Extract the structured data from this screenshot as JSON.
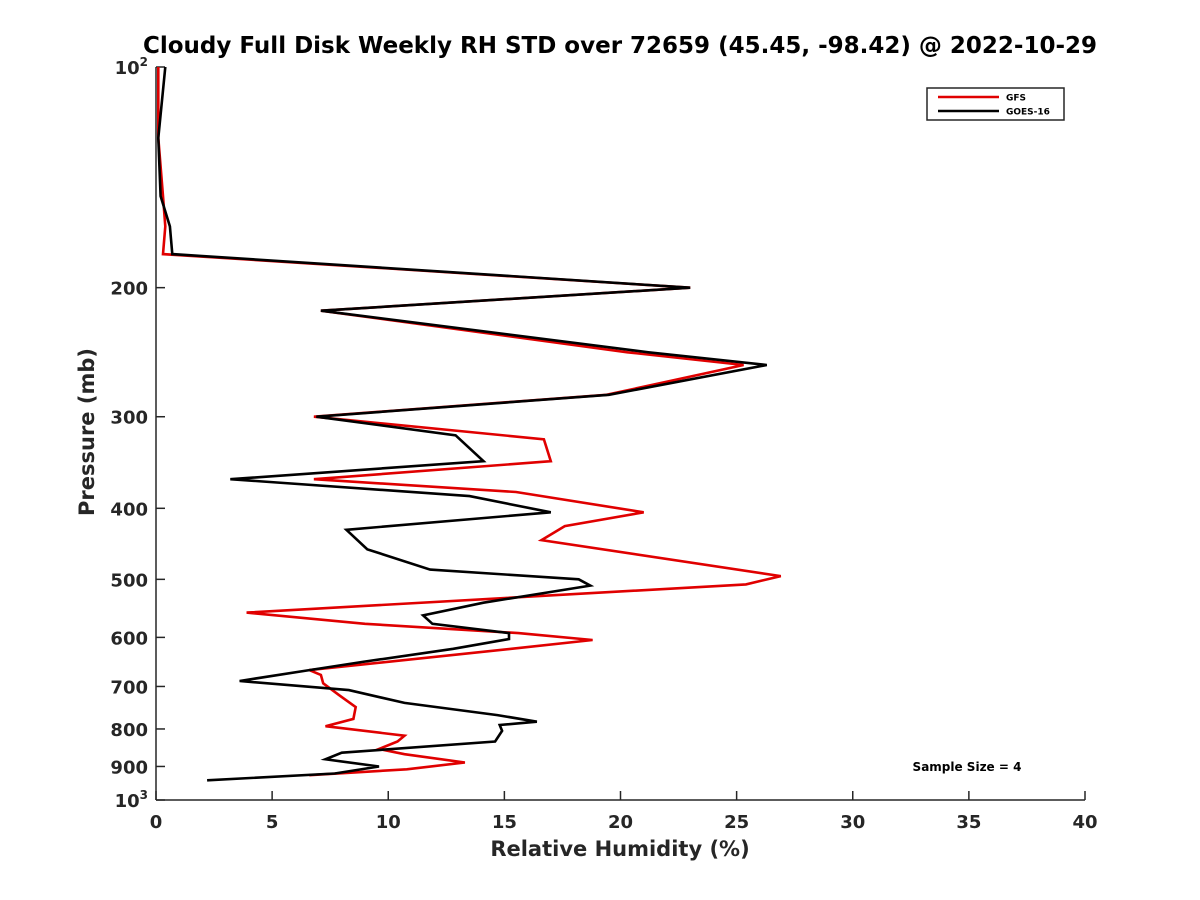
{
  "chart_data": {
    "type": "line",
    "title": "Cloudy Full Disk Weekly RH STD over 72659 (45.45, -98.42) @ 2022-10-29",
    "xlabel": "Relative Humidity (%)",
    "ylabel": "Pressure (mb)",
    "xlim": [
      0,
      40
    ],
    "ylim": [
      100,
      1000
    ],
    "y_scale": "log",
    "y_reversed": true,
    "grid": false,
    "legend_position": "top-right",
    "x_ticks": [
      "0",
      "5",
      "10",
      "15",
      "20",
      "25",
      "30",
      "35",
      "40"
    ],
    "y_ticks": [
      {
        "value": 100,
        "base": "10",
        "exp": "2"
      },
      {
        "value": 200,
        "label": "200"
      },
      {
        "value": 300,
        "label": "300"
      },
      {
        "value": 400,
        "label": "400"
      },
      {
        "value": 500,
        "label": "500"
      },
      {
        "value": 600,
        "label": "600"
      },
      {
        "value": 700,
        "label": "700"
      },
      {
        "value": 800,
        "label": "800"
      },
      {
        "value": 900,
        "label": "900"
      },
      {
        "value": 1000,
        "base": "10",
        "exp": "3"
      }
    ],
    "series": [
      {
        "name": "GFS",
        "color": "#e00000",
        "points": [
          [
            0.1,
            100
          ],
          [
            0.1,
            125
          ],
          [
            0.3,
            150
          ],
          [
            0.4,
            165
          ],
          [
            0.3,
            180
          ],
          [
            23.0,
            200
          ],
          [
            7.1,
            215
          ],
          [
            20.3,
            245
          ],
          [
            25.3,
            255
          ],
          [
            19.4,
            280
          ],
          [
            6.8,
            300
          ],
          [
            16.7,
            322
          ],
          [
            17.0,
            345
          ],
          [
            6.8,
            365
          ],
          [
            15.5,
            380
          ],
          [
            21.0,
            405
          ],
          [
            17.6,
            423
          ],
          [
            16.6,
            442
          ],
          [
            26.9,
            495
          ],
          [
            25.4,
            508
          ],
          [
            3.9,
            555
          ],
          [
            9.0,
            575
          ],
          [
            15.6,
            592
          ],
          [
            18.8,
            605
          ],
          [
            15.3,
            622
          ],
          [
            6.6,
            665
          ],
          [
            7.1,
            675
          ],
          [
            7.2,
            693
          ],
          [
            7.9,
            720
          ],
          [
            8.6,
            747
          ],
          [
            8.5,
            775
          ],
          [
            7.3,
            793
          ],
          [
            10.7,
            817
          ],
          [
            10.4,
            832
          ],
          [
            9.6,
            852
          ],
          [
            10.7,
            866
          ],
          [
            13.3,
            889
          ],
          [
            10.8,
            908
          ],
          [
            6.6,
            925
          ]
        ]
      },
      {
        "name": "GOES-16",
        "color": "#000000",
        "points": [
          [
            0.4,
            100
          ],
          [
            0.1,
            125
          ],
          [
            0.2,
            150
          ],
          [
            0.6,
            165
          ],
          [
            0.7,
            180
          ],
          [
            23.0,
            200
          ],
          [
            7.1,
            215
          ],
          [
            21.2,
            245
          ],
          [
            26.3,
            255
          ],
          [
            19.5,
            280
          ],
          [
            6.9,
            300
          ],
          [
            12.9,
            318
          ],
          [
            14.1,
            345
          ],
          [
            3.2,
            365
          ],
          [
            13.5,
            385
          ],
          [
            17.0,
            405
          ],
          [
            8.2,
            428
          ],
          [
            9.1,
            455
          ],
          [
            11.8,
            485
          ],
          [
            18.2,
            500
          ],
          [
            18.7,
            510
          ],
          [
            14.1,
            538
          ],
          [
            11.5,
            560
          ],
          [
            11.9,
            575
          ],
          [
            15.2,
            592
          ],
          [
            15.2,
            603
          ],
          [
            12.8,
            622
          ],
          [
            8.9,
            648
          ],
          [
            6.6,
            665
          ],
          [
            3.6,
            688
          ],
          [
            8.3,
            708
          ],
          [
            10.7,
            737
          ],
          [
            14.7,
            766
          ],
          [
            16.4,
            782
          ],
          [
            14.8,
            790
          ],
          [
            14.9,
            805
          ],
          [
            14.6,
            832
          ],
          [
            8.0,
            862
          ],
          [
            7.3,
            880
          ],
          [
            9.6,
            900
          ],
          [
            7.7,
            920
          ],
          [
            2.2,
            940
          ]
        ]
      }
    ],
    "annotation": "Sample Size = 4"
  }
}
